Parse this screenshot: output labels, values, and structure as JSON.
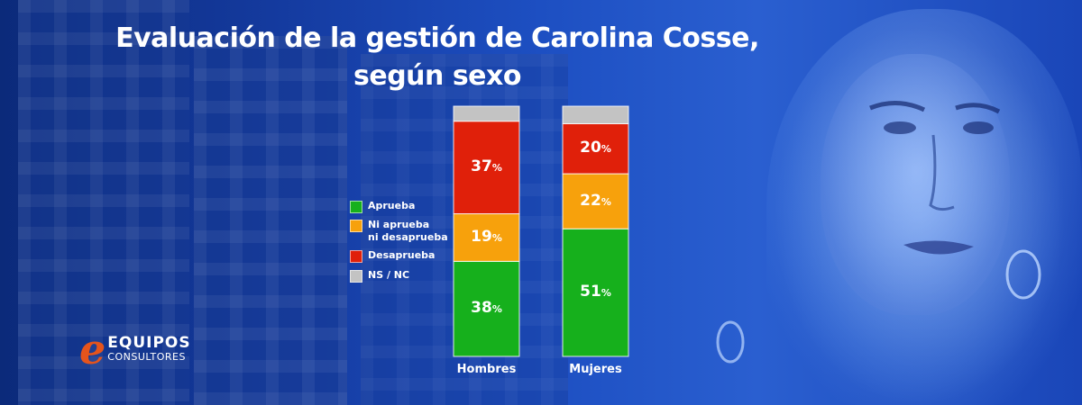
{
  "title_line1": "Evaluación de la gestión de Carolina Cosse,",
  "title_line2": "según sexo",
  "logo": {
    "line1": "EQUIPOS",
    "line2": "CONSULTORES"
  },
  "chart_data": {
    "type": "bar",
    "stacked": true,
    "categories": [
      "Hombres",
      "Mujeres"
    ],
    "series": [
      {
        "name": "Aprueba",
        "color": "#16b01c",
        "values": [
          38,
          51
        ]
      },
      {
        "name": "Ni aprueba ni desaprueba",
        "color": "#f7a10c",
        "values": [
          19,
          22
        ]
      },
      {
        "name": "Desaprueba",
        "color": "#e0200a",
        "values": [
          37,
          20
        ]
      },
      {
        "name": "NS / NC",
        "color": "#c3c3c3",
        "values": [
          6,
          7
        ]
      }
    ],
    "data_labels": [
      [
        "38",
        "19",
        "37",
        null
      ],
      [
        "51",
        "22",
        "20",
        null
      ]
    ],
    "percent_sign": "%",
    "legend": [
      "Aprueba",
      "Ni aprueba\nni desaprueba",
      "Desaprueba",
      "NS / NC"
    ],
    "legend_position": "left",
    "ylim": [
      0,
      100
    ],
    "grid": false
  }
}
